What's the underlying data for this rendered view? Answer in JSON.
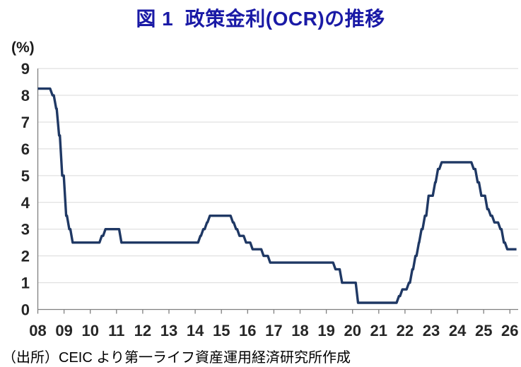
{
  "title": "図 1  政策金利(OCR)の推移",
  "y_axis_unit": "(%)",
  "source": "（出所）CEIC より第一ライフ資産運用経済研究所作成",
  "colors": {
    "title": "#1a1aa6",
    "line": "#1f3864",
    "grid": "#d9d9d9",
    "axis": "#808080",
    "tick_text": "#262626"
  },
  "chart_data": {
    "type": "line",
    "title": "図 1  政策金利(OCR)の推移",
    "series_name": "政策金利(OCR)",
    "ylabel": "(%)",
    "ylim": [
      0,
      9
    ],
    "yticks": [
      "0",
      "1",
      "2",
      "3",
      "4",
      "5",
      "6",
      "7",
      "8",
      "9"
    ],
    "xtick_labels": [
      "08",
      "09",
      "10",
      "11",
      "12",
      "13",
      "14",
      "15",
      "16",
      "17",
      "18",
      "19",
      "20",
      "21",
      "22",
      "23",
      "24",
      "25",
      "26"
    ],
    "xtick_years": [
      2008,
      2009,
      2010,
      2011,
      2012,
      2013,
      2014,
      2015,
      2016,
      2017,
      2018,
      2019,
      2020,
      2021,
      2022,
      2023,
      2024,
      2025,
      2026
    ],
    "x_start": 2008.0,
    "x_end": 2026.25,
    "initial_value": 8.25,
    "rate_changes": [
      [
        2008.56,
        8.0
      ],
      [
        2008.7,
        7.5
      ],
      [
        2008.81,
        6.5
      ],
      [
        2008.93,
        5.0
      ],
      [
        2009.08,
        3.5
      ],
      [
        2009.2,
        3.0
      ],
      [
        2009.33,
        2.5
      ],
      [
        2010.44,
        2.75
      ],
      [
        2010.58,
        3.0
      ],
      [
        2011.19,
        2.5
      ],
      [
        2014.2,
        2.75
      ],
      [
        2014.31,
        3.0
      ],
      [
        2014.45,
        3.25
      ],
      [
        2014.56,
        3.5
      ],
      [
        2015.44,
        3.25
      ],
      [
        2015.56,
        3.0
      ],
      [
        2015.69,
        2.75
      ],
      [
        2015.94,
        2.5
      ],
      [
        2016.19,
        2.25
      ],
      [
        2016.61,
        2.0
      ],
      [
        2016.86,
        1.75
      ],
      [
        2019.35,
        1.5
      ],
      [
        2019.6,
        1.0
      ],
      [
        2020.21,
        0.25
      ],
      [
        2021.77,
        0.5
      ],
      [
        2021.9,
        0.75
      ],
      [
        2022.15,
        1.0
      ],
      [
        2022.28,
        1.5
      ],
      [
        2022.4,
        2.0
      ],
      [
        2022.53,
        2.5
      ],
      [
        2022.63,
        3.0
      ],
      [
        2022.76,
        3.5
      ],
      [
        2022.9,
        4.25
      ],
      [
        2023.15,
        4.75
      ],
      [
        2023.26,
        5.25
      ],
      [
        2023.4,
        5.5
      ],
      [
        2024.62,
        5.25
      ],
      [
        2024.77,
        4.75
      ],
      [
        2024.91,
        4.25
      ],
      [
        2025.14,
        3.75
      ],
      [
        2025.27,
        3.5
      ],
      [
        2025.41,
        3.25
      ],
      [
        2025.64,
        3.0
      ],
      [
        2025.77,
        2.5
      ],
      [
        2025.9,
        2.25
      ]
    ]
  }
}
